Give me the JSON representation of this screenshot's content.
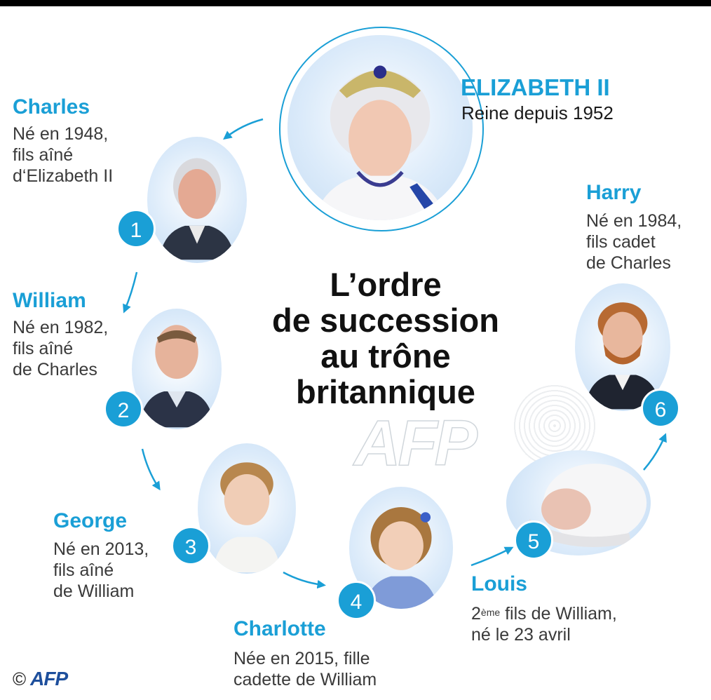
{
  "queen": {
    "name": "ELIZABETH II",
    "desc": "Reine depuis 1952"
  },
  "title": {
    "line1": "L’ordre",
    "line2": "de succession",
    "line3": "au trône",
    "line4": "britannique"
  },
  "people": [
    {
      "number": "1",
      "name": "Charles",
      "desc1": "Né en 1948,",
      "desc2": "fils aîné",
      "desc3": "d‘Elizabeth II"
    },
    {
      "number": "2",
      "name": "William",
      "desc1": "Né en 1982,",
      "desc2": "fils aîné",
      "desc3": "de Charles"
    },
    {
      "number": "3",
      "name": "George",
      "desc1": "Né en 2013,",
      "desc2": "fils aîné",
      "desc3": "de William"
    },
    {
      "number": "4",
      "name": "Charlotte",
      "desc1": "Née en 2015, fille",
      "desc2": "cadette de William"
    },
    {
      "number": "5",
      "name": "Louis",
      "desc_ordinal": "2",
      "desc_sup": "ème",
      "desc1_rest": " fils de William,",
      "desc2": "né le 23 avril"
    },
    {
      "number": "6",
      "name": "Harry",
      "desc1": "Né en 1984,",
      "desc2": "fils cadet",
      "desc3": "de Charles"
    }
  ],
  "watermark": "AFP",
  "credit": {
    "symbol": "©",
    "logo": "AFP"
  },
  "colors": {
    "accent": "#1a9fd6",
    "title": "#111111"
  }
}
